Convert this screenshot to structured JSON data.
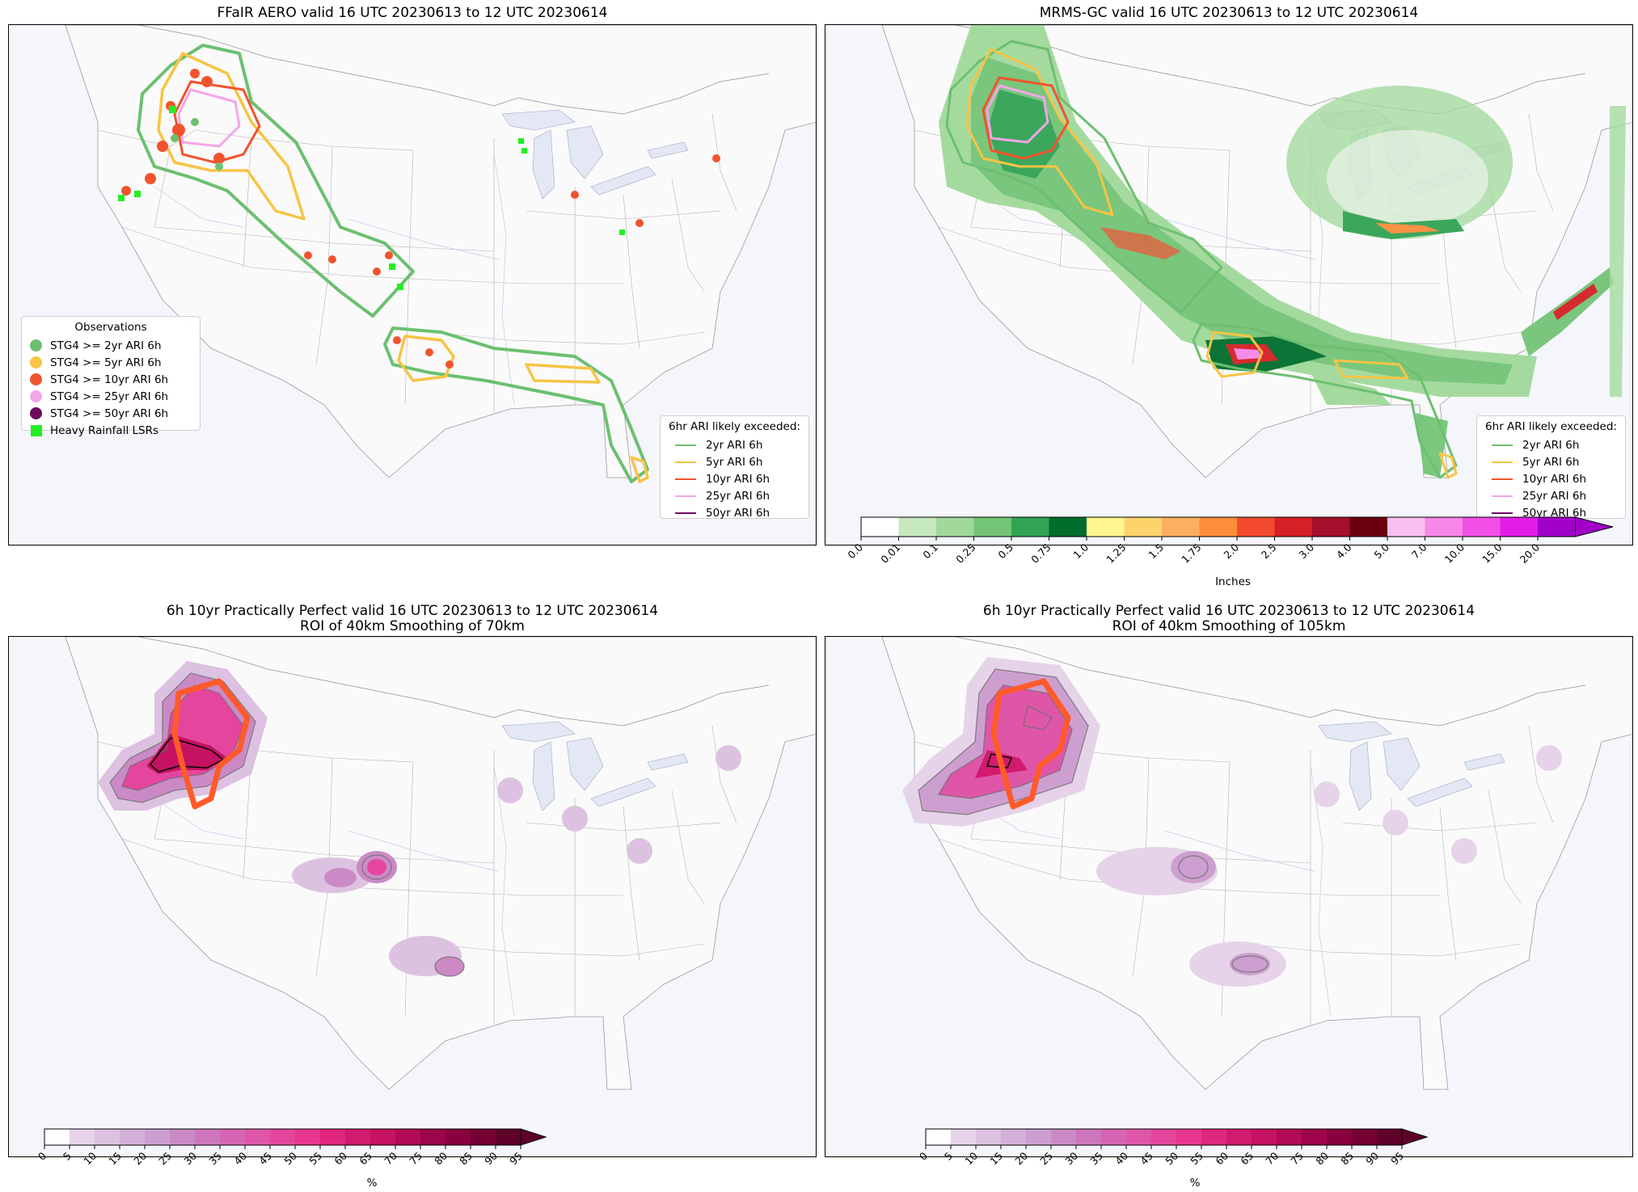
{
  "panels": [
    {
      "title": "FFaIR AERO valid 16 UTC 20230613 to 12 UTC 20230614",
      "subtitle": ""
    },
    {
      "title": "MRMS-GC valid 16 UTC 20230613 to 12 UTC 20230614",
      "subtitle": ""
    },
    {
      "title": "6h 10yr Practically Perfect valid 16 UTC 20230613 to 12 UTC 20230614",
      "subtitle": "ROI of 40km Smoothing of 70km"
    },
    {
      "title": "6h 10yr Practically Perfect valid 16 UTC 20230613 to 12 UTC 20230614",
      "subtitle": "ROI of 40km Smoothing of 105km"
    }
  ],
  "observations_legend": {
    "title": "Observations",
    "items": [
      {
        "label": "STG4 >= 2yr ARI 6h",
        "color": "#6cc070",
        "symbol": "circle"
      },
      {
        "label": "STG4 >= 5yr ARI 6h",
        "color": "#f7c444",
        "symbol": "circle"
      },
      {
        "label": "STG4 >= 10yr ARI 6h",
        "color": "#f2532f",
        "symbol": "circle"
      },
      {
        "label": "STG4 >= 25yr ARI 6h",
        "color": "#f4a6ea",
        "symbol": "circle"
      },
      {
        "label": "STG4 >= 50yr ARI 6h",
        "color": "#6b0a5e",
        "symbol": "circle"
      },
      {
        "label": "Heavy Rainfall LSRs",
        "color": "#22ee22",
        "symbol": "square"
      }
    ]
  },
  "ari_legend": {
    "title": "6hr ARI likely exceeded:",
    "items": [
      {
        "label": "2yr ARI 6h",
        "color": "#6cc070"
      },
      {
        "label": "5yr ARI 6h",
        "color": "#f7c444"
      },
      {
        "label": "10yr ARI 6h",
        "color": "#f2532f"
      },
      {
        "label": "25yr ARI 6h",
        "color": "#f4a6ea"
      },
      {
        "label": "50yr ARI 6h",
        "color": "#6b0a5e"
      }
    ]
  },
  "precip_colorbar": {
    "label": "Inches",
    "ticks": [
      "0.0",
      "0.01",
      "0.1",
      "0.25",
      "0.5",
      "0.75",
      "1.0",
      "1.25",
      "1.5",
      "1.75",
      "2.0",
      "2.5",
      "3.0",
      "4.0",
      "5.0",
      "7.0",
      "10.0",
      "15.0",
      "20.0"
    ],
    "colors": [
      "#ffffff",
      "#c7e9c0",
      "#a1d99b",
      "#74c476",
      "#31a354",
      "#006d2c",
      "#fff68f",
      "#ffd36b",
      "#fdae61",
      "#fb8d3c",
      "#f44a2d",
      "#d61f26",
      "#a50f2c",
      "#6b0013",
      "#f9c0ef",
      "#f787e8",
      "#f24fe6",
      "#e21ee6",
      "#a000c8"
    ]
  },
  "prob_colorbar": {
    "label": "%",
    "ticks": [
      "0",
      "5",
      "10",
      "15",
      "20",
      "25",
      "30",
      "35",
      "40",
      "45",
      "50",
      "55",
      "60",
      "65",
      "70",
      "75",
      "80",
      "85",
      "90",
      "95"
    ],
    "colors": [
      "#ffffff",
      "#e6d3e9",
      "#dcc2e0",
      "#d3b0d8",
      "#cd9fd0",
      "#cb8ac6",
      "#ce77bc",
      "#d665b4",
      "#df56a9",
      "#e4469e",
      "#e7368f",
      "#e1267f",
      "#d21a6f",
      "#c51262",
      "#b30a55",
      "#9e0449",
      "#89003e",
      "#740033",
      "#5f0029"
    ]
  }
}
